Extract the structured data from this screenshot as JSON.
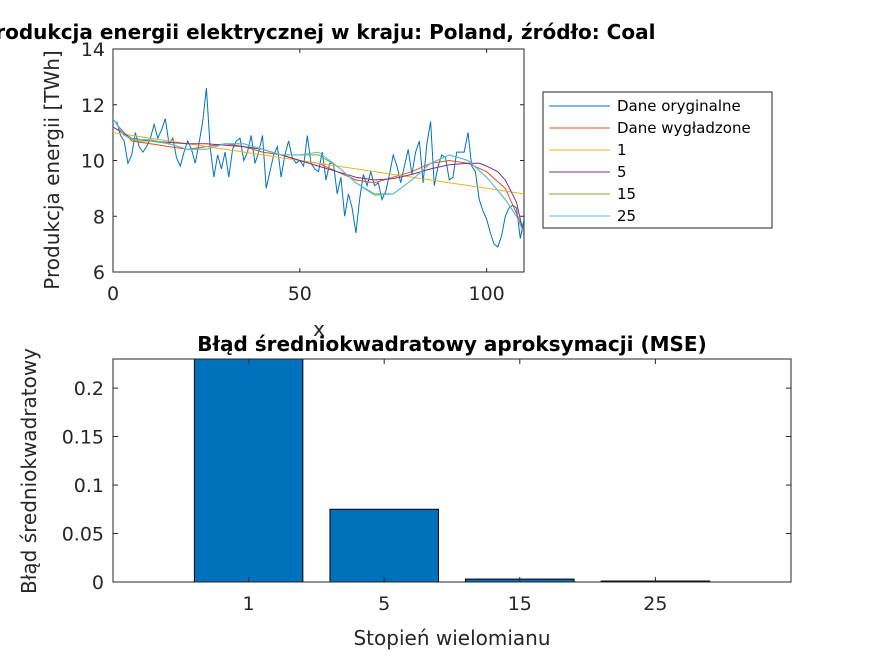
{
  "chart_data": [
    {
      "type": "line",
      "title": "Produkcja energii elektrycznej w kraju: Poland, źródło: Coal",
      "xlabel": "x",
      "ylabel": "Produkcja energii [TWh]",
      "xlim": [
        0,
        110
      ],
      "ylim": [
        6,
        14
      ],
      "xticks": [
        0,
        50,
        100
      ],
      "yticks": [
        6,
        8,
        10,
        12,
        14
      ],
      "grid": false,
      "legend_position": "right",
      "series": [
        {
          "name": "Dane oryginalne",
          "color": "#0072BD",
          "x": [
            1,
            2,
            3,
            4,
            5,
            6,
            7,
            8,
            9,
            10,
            11,
            12,
            13,
            14,
            15,
            16,
            17,
            18,
            19,
            20,
            21,
            22,
            23,
            24,
            25,
            26,
            27,
            28,
            29,
            30,
            31,
            32,
            33,
            34,
            35,
            36,
            37,
            38,
            39,
            40,
            41,
            42,
            43,
            44,
            45,
            46,
            47,
            48,
            49,
            50,
            51,
            52,
            53,
            54,
            55,
            56,
            57,
            58,
            59,
            60,
            61,
            62,
            63,
            64,
            65,
            66,
            67,
            68,
            69,
            70,
            71,
            72,
            73,
            74,
            75,
            76,
            77,
            78,
            79,
            80,
            81,
            82,
            83,
            84,
            85,
            86,
            87,
            88,
            89,
            90,
            91,
            92,
            93,
            94,
            95,
            96,
            97,
            98,
            99,
            100,
            101,
            102,
            103,
            104,
            105,
            106,
            107,
            108,
            109,
            110
          ],
          "y": [
            11.4,
            10.9,
            10.7,
            9.9,
            10.2,
            11.0,
            10.5,
            10.3,
            10.5,
            10.8,
            11.3,
            10.8,
            11.1,
            11.5,
            10.6,
            10.8,
            10.1,
            9.8,
            10.3,
            10.7,
            10.4,
            9.9,
            10.6,
            11.4,
            12.6,
            10.5,
            9.4,
            10.2,
            9.7,
            10.3,
            9.4,
            10.4,
            10.7,
            10.8,
            10.0,
            10.3,
            10.9,
            9.9,
            10.3,
            10.9,
            9.0,
            9.6,
            10.2,
            10.5,
            9.4,
            10.2,
            10.7,
            10.1,
            9.9,
            10.0,
            9.8,
            10.9,
            9.9,
            9.7,
            9.6,
            10.3,
            9.3,
            9.9,
            9.9,
            8.8,
            9.4,
            8.0,
            8.8,
            8.3,
            7.4,
            8.6,
            9.5,
            9.1,
            9.6,
            9.1,
            9.2,
            8.6,
            8.9,
            9.5,
            10.2,
            9.8,
            9.2,
            9.8,
            10.4,
            9.5,
            10.3,
            10.7,
            9.2,
            10.6,
            11.4,
            9.1,
            9.8,
            10.2,
            10.1,
            9.3,
            9.4,
            10.3,
            10.3,
            10.3,
            11.0,
            9.8,
            9.6,
            8.6,
            8.2,
            7.9,
            7.4,
            7.0,
            6.9,
            7.3,
            8.0,
            8.3,
            8.4,
            8.3,
            7.2,
            7.9
          ]
        },
        {
          "name": "Dane wygładzone",
          "color": "#D95319",
          "x": [
            1,
            5,
            10,
            15,
            20,
            25,
            30,
            35,
            40,
            45,
            50,
            55,
            60,
            65,
            70,
            75,
            80,
            85,
            90,
            95,
            100,
            105,
            110
          ],
          "y": [
            11.3,
            10.7,
            10.6,
            10.5,
            10.4,
            10.5,
            10.6,
            10.5,
            10.3,
            10.2,
            10.0,
            9.9,
            9.6,
            9.3,
            9.2,
            9.4,
            9.6,
            9.9,
            10.0,
            9.9,
            9.6,
            9.0,
            7.5
          ]
        },
        {
          "name": "1",
          "color": "#EDB120",
          "x": [
            0,
            110
          ],
          "y": [
            11.0,
            8.8
          ]
        },
        {
          "name": "5",
          "color": "#7E2F8E",
          "x": [
            0,
            5,
            10,
            15,
            20,
            25,
            30,
            35,
            40,
            45,
            50,
            55,
            60,
            65,
            70,
            75,
            80,
            85,
            90,
            95,
            98,
            100,
            103,
            105,
            108,
            110
          ],
          "y": [
            11.2,
            10.8,
            10.7,
            10.65,
            10.6,
            10.6,
            10.55,
            10.5,
            10.4,
            10.2,
            10.0,
            9.8,
            9.6,
            9.4,
            9.3,
            9.35,
            9.5,
            9.7,
            9.85,
            9.9,
            9.9,
            9.8,
            9.6,
            9.3,
            8.5,
            7.3
          ]
        },
        {
          "name": "15",
          "color": "#77AC30",
          "x": [
            0,
            3,
            6,
            10,
            15,
            20,
            25,
            30,
            35,
            40,
            45,
            50,
            55,
            60,
            65,
            70,
            75,
            80,
            85,
            90,
            95,
            100,
            105,
            108,
            110
          ],
          "y": [
            11.5,
            10.9,
            10.7,
            10.7,
            10.6,
            10.4,
            10.4,
            10.6,
            10.6,
            10.4,
            10.2,
            10.2,
            10.2,
            9.8,
            9.2,
            8.8,
            8.8,
            9.3,
            9.9,
            10.2,
            10.0,
            9.4,
            8.6,
            8.0,
            7.4
          ]
        },
        {
          "name": "25",
          "color": "#4DBEEE",
          "x": [
            0,
            3,
            6,
            10,
            15,
            20,
            25,
            30,
            35,
            40,
            45,
            50,
            55,
            60,
            65,
            70,
            75,
            80,
            85,
            90,
            95,
            100,
            105,
            108,
            110
          ],
          "y": [
            11.5,
            10.9,
            10.75,
            10.75,
            10.6,
            10.4,
            10.4,
            10.6,
            10.6,
            10.4,
            10.2,
            10.2,
            10.3,
            9.8,
            9.2,
            8.75,
            8.8,
            9.3,
            9.9,
            10.2,
            10.0,
            9.4,
            8.6,
            8.0,
            7.4
          ]
        }
      ]
    },
    {
      "type": "bar",
      "title": "Błąd średniokwadratowy aproksymacji (MSE)",
      "xlabel": "Stopień wielomianu",
      "ylabel": "Błąd średniokwadratowy",
      "categories": [
        "1",
        "5",
        "15",
        "25"
      ],
      "values": [
        0.235,
        0.075,
        0.003,
        0.001
      ],
      "ylim": [
        0,
        0.23
      ],
      "yticks": [
        0,
        0.05,
        0.1,
        0.15,
        0.2
      ],
      "ytick_labels": [
        "0",
        "0.05",
        "0.1",
        "0.15",
        "0.2"
      ],
      "bar_color": "#0072BD",
      "grid": false
    }
  ]
}
